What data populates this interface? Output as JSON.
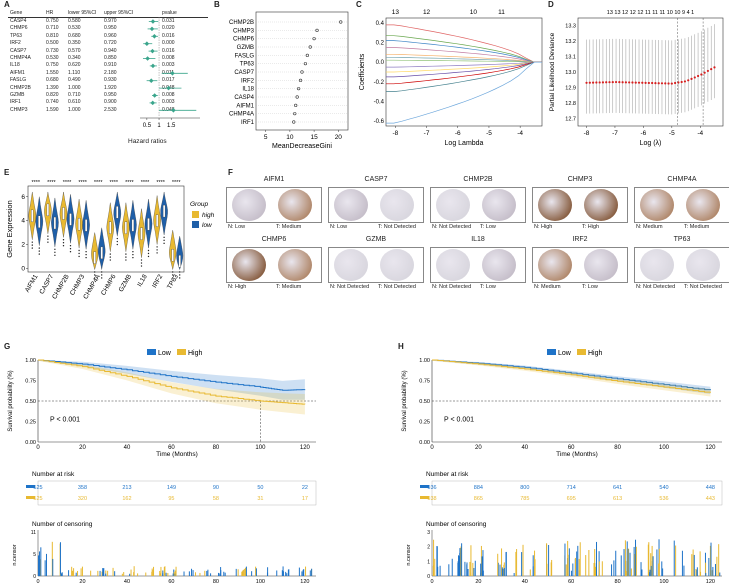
{
  "panels": {
    "A": "A",
    "B": "B",
    "C": "C",
    "D": "D",
    "E": "E",
    "F": "F",
    "G": "G",
    "H": "H"
  },
  "panelA": {
    "columns": [
      "Gene",
      "HR",
      "lower 95%CI",
      "upper 95%CI",
      "pvalue"
    ],
    "rows": [
      {
        "gene": "CASP4",
        "hr": "0.750",
        "lower": "0.580",
        "upper": "0.970",
        "pvalue": "0.031"
      },
      {
        "gene": "CHMP6",
        "hr": "0.710",
        "lower": "0.530",
        "upper": "0.950",
        "pvalue": "0.020"
      },
      {
        "gene": "TP63",
        "hr": "0.810",
        "lower": "0.680",
        "upper": "0.960",
        "pvalue": "0.016"
      },
      {
        "gene": "IRF2",
        "hr": "0.500",
        "lower": "0.350",
        "upper": "0.720",
        "pvalue": "0.000"
      },
      {
        "gene": "CASP7",
        "hr": "0.730",
        "lower": "0.570",
        "upper": "0.940",
        "pvalue": "0.016"
      },
      {
        "gene": "CHMP4A",
        "hr": "0.530",
        "lower": "0.340",
        "upper": "0.850",
        "pvalue": "0.008"
      },
      {
        "gene": "IL18",
        "hr": "0.750",
        "lower": "0.620",
        "upper": "0.910",
        "pvalue": "0.003"
      },
      {
        "gene": "AIFM1",
        "hr": "1.550",
        "lower": "1.110",
        "upper": "2.180",
        "pvalue": "0.011"
      },
      {
        "gene": "FASLG",
        "hr": "0.680",
        "lower": "0.490",
        "upper": "0.930",
        "pvalue": "0.017"
      },
      {
        "gene": "CHMP2B",
        "hr": "1.390",
        "lower": "1.000",
        "upper": "1.920",
        "pvalue": "0.048"
      },
      {
        "gene": "GZMB",
        "hr": "0.820",
        "lower": "0.710",
        "upper": "0.950",
        "pvalue": "0.008"
      },
      {
        "gene": "IRF1",
        "hr": "0.740",
        "lower": "0.610",
        "upper": "0.900",
        "pvalue": "0.003"
      },
      {
        "gene": "CHMP3",
        "hr": "1.590",
        "lower": "1.000",
        "upper": "2.530",
        "pvalue": "0.048"
      }
    ],
    "xticks": [
      "0.5",
      "1",
      "1.5"
    ],
    "xlabel": "Hazard ratios"
  },
  "panelB": {
    "genes": [
      "CHMP2B",
      "CHMP3",
      "CHMP6",
      "GZMB",
      "FASLG",
      "TP63",
      "CASP7",
      "IRF2",
      "IL18",
      "CASP4",
      "AIFM1",
      "CHMP4A",
      "IRF1"
    ],
    "values": [
      20.5,
      15.6,
      15.0,
      14.2,
      13.6,
      13.2,
      12.5,
      12.2,
      11.8,
      11.5,
      11.2,
      11.0,
      10.8
    ],
    "xticks": [
      "5",
      "10",
      "15",
      "20"
    ],
    "xlabel": "MeanDecreaseGini"
  },
  "panelC": {
    "top_ticks": [
      "13",
      "12",
      "10",
      "11"
    ],
    "yticks": [
      "0.4",
      "0.2",
      "0.0",
      "-0.2",
      "-0.4",
      "-0.6"
    ],
    "xticks": [
      "-8",
      "-7",
      "-6",
      "-5",
      "-4"
    ],
    "ylabel": "Coefficients",
    "xlabel": "Log Lambda"
  },
  "panelD": {
    "top_ticks": "13 13 12 12 12 11 11 11 10 10 9 4 1",
    "yticks": [
      "13.3",
      "13.2",
      "13.1",
      "13.0",
      "12.9",
      "12.8",
      "12.7"
    ],
    "xticks": [
      "-8",
      "-7",
      "-6",
      "-5",
      "-4"
    ],
    "ylabel": "Partial Likelihood Deviance",
    "xlabel": "Log (λ)"
  },
  "panelE": {
    "genes": [
      "AIFM1",
      "CASP7",
      "CHMP2B",
      "CHMP3",
      "CHMP4A",
      "CHMP6",
      "GZMB",
      "IL18",
      "IRF2",
      "TP63"
    ],
    "sig": "****",
    "ylabel": "Gene Expression",
    "yticks": [
      "6",
      "4",
      "2",
      "0"
    ],
    "legend_title": "Group",
    "legend_high": "high",
    "legend_low": "low",
    "color_high": "#e8b931",
    "color_low": "#1f5fa8"
  },
  "panelF": {
    "items": [
      {
        "name": "AIFM1",
        "n": "N: Low",
        "t": "T: Medium"
      },
      {
        "name": "CASP7",
        "n": "N: Low",
        "t": "T: Not Detected"
      },
      {
        "name": "CHMP2B",
        "n": "N: Not Detected",
        "t": "T: Low"
      },
      {
        "name": "CHMP3",
        "n": "N: High",
        "t": "T: High"
      },
      {
        "name": "CHMP4A",
        "n": "N: Medium",
        "t": "T: Medium"
      },
      {
        "name": "CHMP6",
        "n": "N: High",
        "t": "T: Medium"
      },
      {
        "name": "GZMB",
        "n": "N: Not Detected",
        "t": "T: Not Detected"
      },
      {
        "name": "IL18",
        "n": "N: Not Detected",
        "t": "T: Low"
      },
      {
        "name": "IRF2",
        "n": "N: Medium",
        "t": "T: Low"
      },
      {
        "name": "TP63",
        "n": "N: Not Detected",
        "t": "T: Not Detected"
      }
    ]
  },
  "panelG": {
    "legend_low": "Low",
    "legend_high": "High",
    "ylabel": "Survival probability (%)",
    "yticks": [
      "1.00",
      "0.75",
      "0.50",
      "0.25",
      "0.00"
    ],
    "xticks": [
      "0",
      "20",
      "40",
      "60",
      "80",
      "100",
      "120"
    ],
    "xlabel": "Time (Months)",
    "pvalue": "P < 0.001",
    "risk_title": "Number at risk",
    "risk_low": [
      "525",
      "358",
      "213",
      "149",
      "90",
      "50",
      "22"
    ],
    "risk_high": [
      "525",
      "320",
      "162",
      "95",
      "58",
      "31",
      "17"
    ],
    "censor_title": "Number of censoring",
    "censor_ylabel": "n.censor",
    "censor_yticks": [
      "11",
      "5",
      "0"
    ],
    "color_low": "#1e73c8",
    "color_high": "#e8b931"
  },
  "panelH": {
    "legend_low": "Low",
    "legend_high": "High",
    "ylabel": "Survival probability (%)",
    "yticks": [
      "1.00",
      "0.75",
      "0.50",
      "0.25",
      "0.00"
    ],
    "xticks": [
      "0",
      "20",
      "40",
      "60",
      "80",
      "100",
      "120"
    ],
    "xlabel": "Time (Months)",
    "pvalue": "P < 0.001",
    "risk_title": "Number at risk",
    "risk_low": [
      "936",
      "884",
      "800",
      "714",
      "641",
      "540",
      "448"
    ],
    "risk_high": [
      "938",
      "865",
      "785",
      "695",
      "613",
      "536",
      "443"
    ],
    "censor_title": "Number of censoring",
    "censor_ylabel": "n.censor",
    "censor_yticks": [
      "3",
      "2",
      "1",
      "0"
    ],
    "color_low": "#1e73c8",
    "color_high": "#e8b931"
  },
  "chart_data": [
    {
      "type": "scatter",
      "panel": "A",
      "title": "Hazard ratios forest plot",
      "categories": [
        "CASP4",
        "CHMP6",
        "TP63",
        "IRF2",
        "CASP7",
        "CHMP4A",
        "IL18",
        "AIFM1",
        "FASLG",
        "CHMP2B",
        "GZMB",
        "IRF1",
        "CHMP3"
      ],
      "hr": [
        0.75,
        0.71,
        0.81,
        0.5,
        0.73,
        0.53,
        0.75,
        1.55,
        0.68,
        1.39,
        0.82,
        0.74,
        1.59
      ],
      "lower": [
        0.58,
        0.53,
        0.68,
        0.35,
        0.57,
        0.34,
        0.62,
        1.11,
        0.49,
        1.0,
        0.71,
        0.61,
        1.0
      ],
      "upper": [
        0.97,
        0.95,
        0.96,
        0.72,
        0.94,
        0.85,
        0.91,
        2.18,
        0.93,
        1.92,
        0.95,
        0.9,
        2.53
      ],
      "xlim": [
        0.3,
        2.6
      ]
    },
    {
      "type": "scatter",
      "panel": "B",
      "xlabel": "MeanDecreaseGini",
      "categories": [
        "CHMP2B",
        "CHMP3",
        "CHMP6",
        "GZMB",
        "FASLG",
        "TP63",
        "CASP7",
        "IRF2",
        "IL18",
        "CASP4",
        "AIFM1",
        "CHMP4A",
        "IRF1"
      ],
      "values": [
        20.5,
        15.6,
        15.0,
        14.2,
        13.6,
        13.2,
        12.5,
        12.2,
        11.8,
        11.5,
        11.2,
        11.0,
        10.8
      ],
      "xlim": [
        3,
        22
      ]
    },
    {
      "type": "line",
      "panel": "D",
      "xlabel": "Log (λ)",
      "ylabel": "Partial Likelihood Deviance",
      "x": [
        -8,
        -7,
        -6,
        -5,
        -4.5,
        -4,
        -3.5
      ],
      "y": [
        12.93,
        12.935,
        12.93,
        12.925,
        12.94,
        12.98,
        13.03
      ],
      "ylim": [
        12.65,
        13.35
      ],
      "xlim": [
        -8.3,
        -3.2
      ]
    },
    {
      "type": "line",
      "panel": "G",
      "xlabel": "Time (Months)",
      "ylabel": "Survival probability (%)",
      "series": [
        {
          "name": "Low",
          "x": [
            0,
            20,
            40,
            60,
            80,
            100,
            110,
            120
          ],
          "y": [
            1.0,
            0.95,
            0.88,
            0.8,
            0.73,
            0.67,
            0.63,
            0.64
          ]
        },
        {
          "name": "High",
          "x": [
            0,
            20,
            40,
            60,
            80,
            100,
            110,
            120
          ],
          "y": [
            1.0,
            0.92,
            0.8,
            0.66,
            0.56,
            0.5,
            0.48,
            0.46
          ]
        }
      ],
      "ylim": [
        0,
        1
      ],
      "xlim": [
        0,
        125
      ]
    },
    {
      "type": "line",
      "panel": "H",
      "xlabel": "Time (Months)",
      "ylabel": "Survival probability (%)",
      "series": [
        {
          "name": "Low",
          "x": [
            0,
            20,
            40,
            60,
            80,
            100,
            120
          ],
          "y": [
            1.0,
            0.96,
            0.91,
            0.84,
            0.77,
            0.7,
            0.63
          ]
        },
        {
          "name": "High",
          "x": [
            0,
            20,
            40,
            60,
            80,
            100,
            120
          ],
          "y": [
            1.0,
            0.95,
            0.89,
            0.82,
            0.74,
            0.67,
            0.6
          ]
        }
      ],
      "ylim": [
        0,
        1
      ],
      "xlim": [
        0,
        125
      ]
    }
  ]
}
